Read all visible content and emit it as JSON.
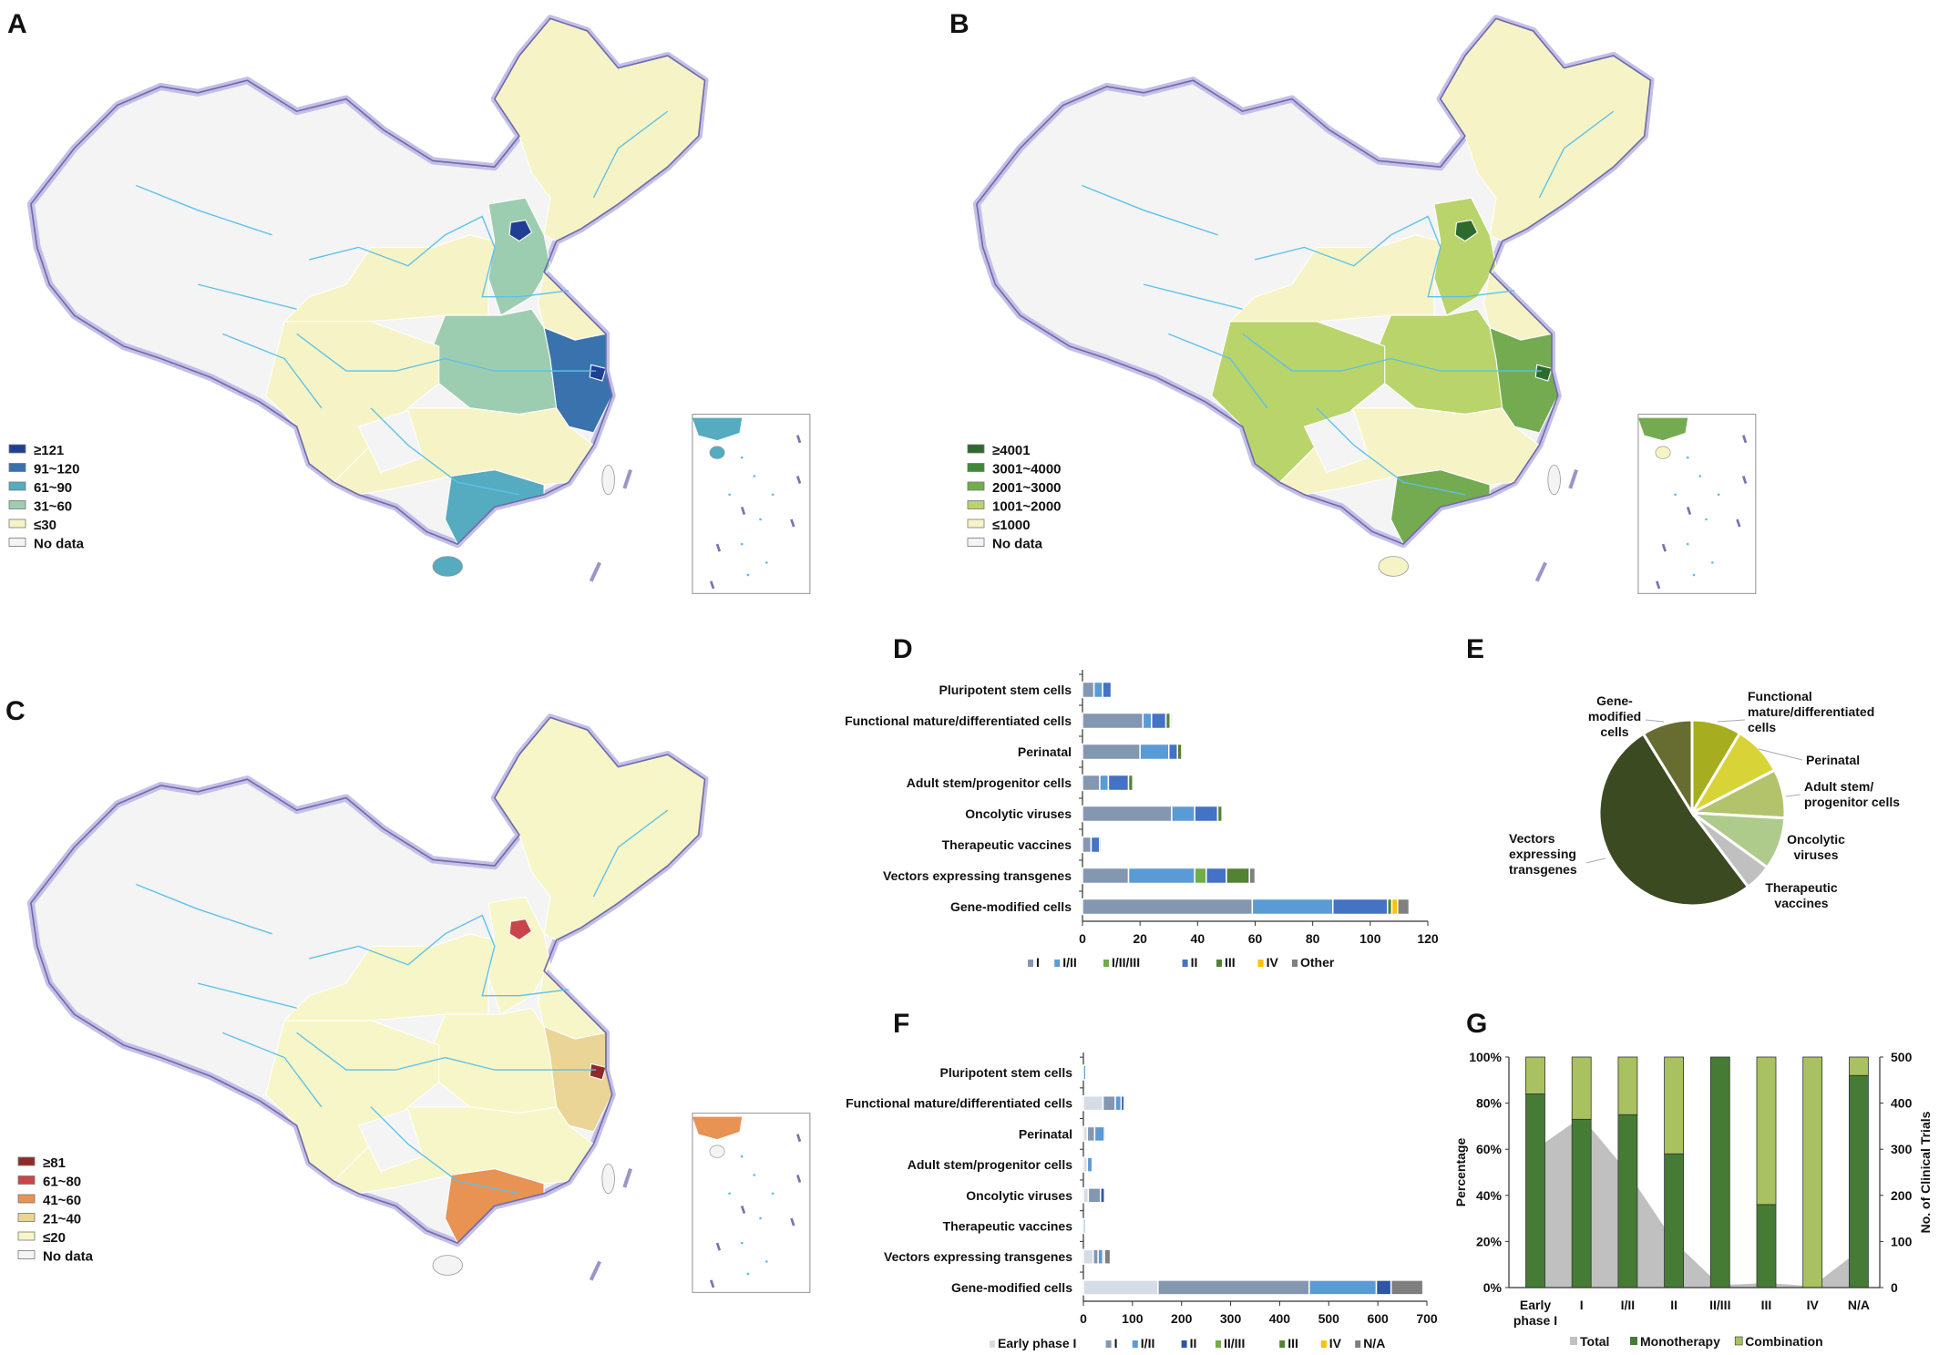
{
  "panel_labels": [
    "A",
    "B",
    "C",
    "D",
    "E",
    "F",
    "G"
  ],
  "maps": [
    {
      "id": "A",
      "legend": [
        {
          "label": "≥121",
          "color": "#1f3f94"
        },
        {
          "label": "91~120",
          "color": "#3a72ae"
        },
        {
          "label": "61~90",
          "color": "#55abc0"
        },
        {
          "label": "31~60",
          "color": "#9dcdb0"
        },
        {
          "label": "≤30",
          "color": "#f6f4c6"
        },
        {
          "label": "No data",
          "color": "#f4f4f4"
        }
      ],
      "regions": {
        "northeast": 4,
        "northwest_central": 4,
        "hebei_shanxi": 3,
        "beijing": 0,
        "shandong": 4,
        "central": 3,
        "east": 1,
        "shanghai": 0,
        "south": 2,
        "southwest": 4,
        "guizhou": 5,
        "south_central": 4,
        "hainan": 2,
        "taiwan": 5
      }
    },
    {
      "id": "B",
      "legend": [
        {
          "label": "≥4001",
          "color": "#2e6a2e"
        },
        {
          "label": "3001~4000",
          "color": "#3f8a3a"
        },
        {
          "label": "2001~3000",
          "color": "#74ab50"
        },
        {
          "label": "1001~2000",
          "color": "#b9d46a"
        },
        {
          "label": "≤1000",
          "color": "#f6f4c6"
        },
        {
          "label": "No data",
          "color": "#f4f4f4"
        }
      ],
      "regions": {
        "northeast": 4,
        "northwest_central": 4,
        "hebei_shanxi": 3,
        "beijing": 0,
        "shandong": 4,
        "central": 3,
        "east": 2,
        "shanghai": 0,
        "south": 2,
        "southwest": 3,
        "guizhou": 5,
        "south_central": 4,
        "hainan": 4,
        "taiwan": 5
      }
    },
    {
      "id": "C",
      "legend": [
        {
          "label": "≥81",
          "color": "#8e2a2a"
        },
        {
          "label": "61~80",
          "color": "#c8464a"
        },
        {
          "label": "41~60",
          "color": "#e89254"
        },
        {
          "label": "21~40",
          "color": "#ead596"
        },
        {
          "label": "≤20",
          "color": "#f7f6c8"
        },
        {
          "label": "No data",
          "color": "#f4f4f4"
        }
      ],
      "regions": {
        "northeast": 4,
        "northwest_central": 4,
        "hebei_shanxi": 4,
        "beijing": 1,
        "shandong": 4,
        "central": 4,
        "east": 3,
        "shanghai": 0,
        "south": 2,
        "southwest": 4,
        "guizhou": 5,
        "south_central": 4,
        "hainan": 5,
        "taiwan": 5
      }
    }
  ],
  "chart_data": [
    {
      "panel": "D",
      "type": "bar",
      "orientation": "horizontal",
      "stacked": true,
      "categories": [
        "Pluripotent stem cells",
        "Functional mature/differentiated cells",
        "Perinatal",
        "Adult stem/progenitor cells",
        "Oncolytic viruses",
        "Therapeutic vaccines",
        "Vectors expressing transgenes",
        "Gene-modified cells"
      ],
      "series": [
        {
          "name": "I",
          "color": "#8497b0",
          "values": [
            4,
            21,
            20,
            6,
            31,
            3,
            16,
            59
          ]
        },
        {
          "name": "I/II",
          "color": "#5b9bd5",
          "values": [
            3,
            3,
            10,
            3,
            8,
            0,
            23,
            28
          ]
        },
        {
          "name": "I/II/III",
          "color": "#70ad47",
          "values": [
            0,
            0,
            0,
            0,
            0,
            0,
            4,
            0
          ]
        },
        {
          "name": "II",
          "color": "#4472c4",
          "values": [
            3,
            5,
            3,
            7,
            8,
            3,
            7,
            19
          ]
        },
        {
          "name": "III",
          "color": "#548235",
          "values": [
            0,
            1.5,
            1.5,
            1.5,
            1.5,
            0.5,
            8,
            1.5
          ]
        },
        {
          "name": "IV",
          "color": "#ffc000",
          "values": [
            0,
            0,
            0,
            0,
            0,
            0,
            0,
            2
          ]
        },
        {
          "name": "Other",
          "color": "#808080",
          "values": [
            0,
            0.5,
            0,
            0.5,
            0,
            0,
            2,
            4
          ]
        }
      ],
      "xlim": [
        0,
        120
      ],
      "xticks": [
        0,
        20,
        40,
        60,
        80,
        100,
        120
      ],
      "legend": "bottom"
    },
    {
      "panel": "E",
      "type": "pie",
      "slices": [
        {
          "label": "Functional mature/differentiated cells",
          "lines": [
            "Functional",
            "mature/differentiated",
            "cells"
          ],
          "value": 8.6,
          "color": "#a6ad1f"
        },
        {
          "label": "Perinatal",
          "lines": [
            "Perinatal"
          ],
          "value": 8.8,
          "color": "#d8d437"
        },
        {
          "label": "Adult stem/progenitor cells",
          "lines": [
            "Adult stem/",
            "progenitor cells"
          ],
          "value": 8.5,
          "color": "#b3c36c"
        },
        {
          "label": "Oncolytic viruses",
          "lines": [
            "Oncolytic",
            "viruses"
          ],
          "value": 9.1,
          "color": "#afcb8c"
        },
        {
          "label": "Therapeutic vaccines",
          "lines": [
            "Therapeutic",
            "vaccines"
          ],
          "value": 4.7,
          "color": "#c0c0c0"
        },
        {
          "label": "Vectors expressing transgenes",
          "lines": [
            "Vectors",
            "expressing",
            "transgenes"
          ],
          "value": 51.5,
          "color": "#3c4a22"
        },
        {
          "label": "Gene-modified cells",
          "lines": [
            "Gene-",
            "modified",
            "cells"
          ],
          "value": 8.8,
          "color": "#676d30"
        }
      ]
    },
    {
      "panel": "F",
      "type": "bar",
      "orientation": "horizontal",
      "stacked": true,
      "categories": [
        "Pluripotent stem cells",
        "Functional mature/differentiated cells",
        "Perinatal",
        "Adult stem/progenitor cells",
        "Oncolytic viruses",
        "Therapeutic vaccines",
        "Vectors expressing transgenes",
        "Gene-modified cells"
      ],
      "series": [
        {
          "name": "Early phase I",
          "color": "#d6dce5",
          "values": [
            0,
            40,
            8,
            8,
            10,
            0,
            20,
            152
          ]
        },
        {
          "name": "I",
          "color": "#8497b0",
          "values": [
            0,
            25,
            15,
            0,
            25,
            0,
            10,
            308
          ]
        },
        {
          "name": "I/II",
          "color": "#5b9bd5",
          "values": [
            5,
            12,
            20,
            10,
            0,
            4,
            10,
            137
          ]
        },
        {
          "name": "II",
          "color": "#2f55a4",
          "values": [
            0,
            6,
            0,
            0,
            8,
            0,
            3,
            30
          ]
        },
        {
          "name": "II/III",
          "color": "#70ad47",
          "values": [
            0,
            0,
            3,
            0,
            0,
            0,
            0,
            0
          ]
        },
        {
          "name": "III",
          "color": "#548235",
          "values": [
            0,
            0,
            0,
            0,
            0,
            0,
            0,
            0
          ]
        },
        {
          "name": "IV",
          "color": "#ffc000",
          "values": [
            0,
            0,
            0,
            0,
            0,
            0,
            0,
            0
          ]
        },
        {
          "name": "N/A",
          "color": "#7f7f7f",
          "values": [
            0,
            0,
            0,
            0,
            0,
            0,
            12,
            65
          ]
        }
      ],
      "xlim": [
        0,
        700
      ],
      "xticks": [
        0,
        100,
        200,
        300,
        400,
        500,
        600,
        700
      ],
      "legend": "bottom"
    },
    {
      "panel": "G",
      "type": "bar",
      "stacked": true,
      "percent": true,
      "categories": [
        "Early phase I",
        "I",
        "I/II",
        "II",
        "II/III",
        "III",
        "IV",
        "N/A"
      ],
      "category_lines": [
        [
          "Early",
          "phase I"
        ],
        [
          "I"
        ],
        [
          "I/II"
        ],
        [
          "II"
        ],
        [
          "II/III"
        ],
        [
          "III"
        ],
        [
          "IV"
        ],
        [
          "N/A"
        ]
      ],
      "series": [
        {
          "name": "Monotherapy",
          "color": "#467b35",
          "values": [
            84,
            73,
            75,
            58,
            100,
            36,
            0,
            92
          ]
        },
        {
          "name": "Combination",
          "color": "#a9c160",
          "values": [
            16,
            27,
            25,
            42,
            0,
            64,
            100,
            8
          ]
        }
      ],
      "area_series": {
        "name": "Total",
        "color": "#c0c0c0",
        "axis": "right",
        "values": [
          300,
          370,
          250,
          100,
          5,
          10,
          3,
          80
        ]
      },
      "ylabel": "Percentage",
      "y2label": "No. of Clinical Trials",
      "ylim": [
        0,
        100
      ],
      "yticks": [
        "0%",
        "20%",
        "40%",
        "60%",
        "80%",
        "100%"
      ],
      "y2lim": [
        0,
        500
      ],
      "y2ticks": [
        0,
        100,
        200,
        300,
        400,
        500
      ],
      "legend_order": [
        "Total",
        "Monotherapy",
        "Combination"
      ],
      "legend": "bottom"
    }
  ]
}
